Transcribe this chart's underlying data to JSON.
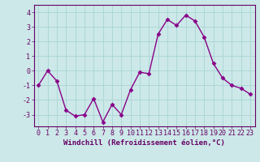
{
  "x": [
    0,
    1,
    2,
    3,
    4,
    5,
    6,
    7,
    8,
    9,
    10,
    11,
    12,
    13,
    14,
    15,
    16,
    17,
    18,
    19,
    20,
    21,
    22,
    23
  ],
  "y": [
    -1,
    0,
    -0.7,
    -2.7,
    -3.1,
    -3.0,
    -1.9,
    -3.5,
    -2.3,
    -3.0,
    -1.3,
    -0.1,
    -0.2,
    2.5,
    3.5,
    3.1,
    3.8,
    3.4,
    2.3,
    0.5,
    -0.5,
    -1.0,
    -1.2,
    -1.6
  ],
  "line_color": "#880088",
  "marker": "D",
  "marker_size": 2.5,
  "line_width": 1.0,
  "bg_color": "#cce8e8",
  "grid_color": "#aad4d4",
  "xlabel": "Windchill (Refroidissement éolien,°C)",
  "xlabel_fontsize": 6.5,
  "yticks": [
    -3,
    -2,
    -1,
    0,
    1,
    2,
    3,
    4
  ],
  "xticks": [
    0,
    1,
    2,
    3,
    4,
    5,
    6,
    7,
    8,
    9,
    10,
    11,
    12,
    13,
    14,
    15,
    16,
    17,
    18,
    19,
    20,
    21,
    22,
    23
  ],
  "ylim": [
    -3.8,
    4.5
  ],
  "xlim": [
    -0.5,
    23.5
  ],
  "tick_fontsize": 6.0,
  "tick_color": "#660066",
  "label_color": "#660066",
  "spine_color": "#660066"
}
